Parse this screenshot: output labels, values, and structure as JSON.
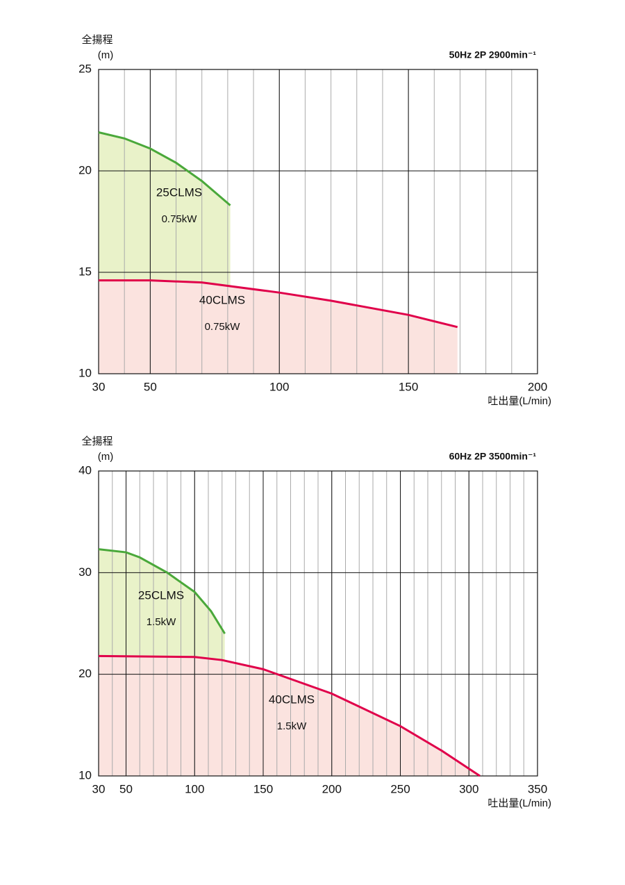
{
  "chart_data": [
    {
      "type": "line",
      "title": "50Hz 2P 2900min⁻¹",
      "y_label": "全揚程",
      "y_unit": "(m)",
      "x_label": "吐出量(L/min)",
      "xlim": [
        30,
        200
      ],
      "xticks": [
        30,
        50,
        100,
        150,
        200
      ],
      "x_minor_step": 10,
      "ylim": [
        10,
        25
      ],
      "yticks": [
        10,
        15,
        20,
        25
      ],
      "grid": true,
      "series": [
        {
          "name": "25CLMS",
          "power": "0.75kW",
          "color": "#4aa83a",
          "fill": "#e9f2c9",
          "x": [
            30,
            40,
            50,
            60,
            70,
            81
          ],
          "values": [
            21.9,
            21.6,
            21.1,
            20.4,
            19.5,
            18.3
          ]
        },
        {
          "name": "40CLMS",
          "power": "0.75kW",
          "color": "#e0004a",
          "fill": "#fbe3df",
          "x": [
            30,
            50,
            70,
            100,
            120,
            150,
            169
          ],
          "values": [
            14.6,
            14.6,
            14.5,
            14.0,
            13.6,
            12.9,
            12.3
          ]
        }
      ]
    },
    {
      "type": "line",
      "title": "60Hz 2P 3500min⁻¹",
      "y_label": "全揚程",
      "y_unit": "(m)",
      "x_label": "吐出量(L/min)",
      "xlim": [
        30,
        350
      ],
      "xticks": [
        30,
        50,
        100,
        150,
        200,
        250,
        300,
        350
      ],
      "x_minor_step": 10,
      "ylim": [
        10,
        40
      ],
      "yticks": [
        10,
        20,
        30,
        40
      ],
      "grid": true,
      "series": [
        {
          "name": "25CLMS",
          "power": "1.5kW",
          "color": "#4aa83a",
          "fill": "#e9f2c9",
          "x": [
            30,
            50,
            60,
            80,
            100,
            112,
            122
          ],
          "values": [
            32.3,
            32.0,
            31.5,
            30.0,
            28.1,
            26.2,
            24.0
          ]
        },
        {
          "name": "40CLMS",
          "power": "1.5kW",
          "color": "#e0004a",
          "fill": "#fbe3df",
          "x": [
            30,
            100,
            120,
            150,
            200,
            250,
            280,
            308
          ],
          "values": [
            21.8,
            21.7,
            21.4,
            20.5,
            18.1,
            14.9,
            12.5,
            10.0
          ]
        }
      ]
    }
  ]
}
